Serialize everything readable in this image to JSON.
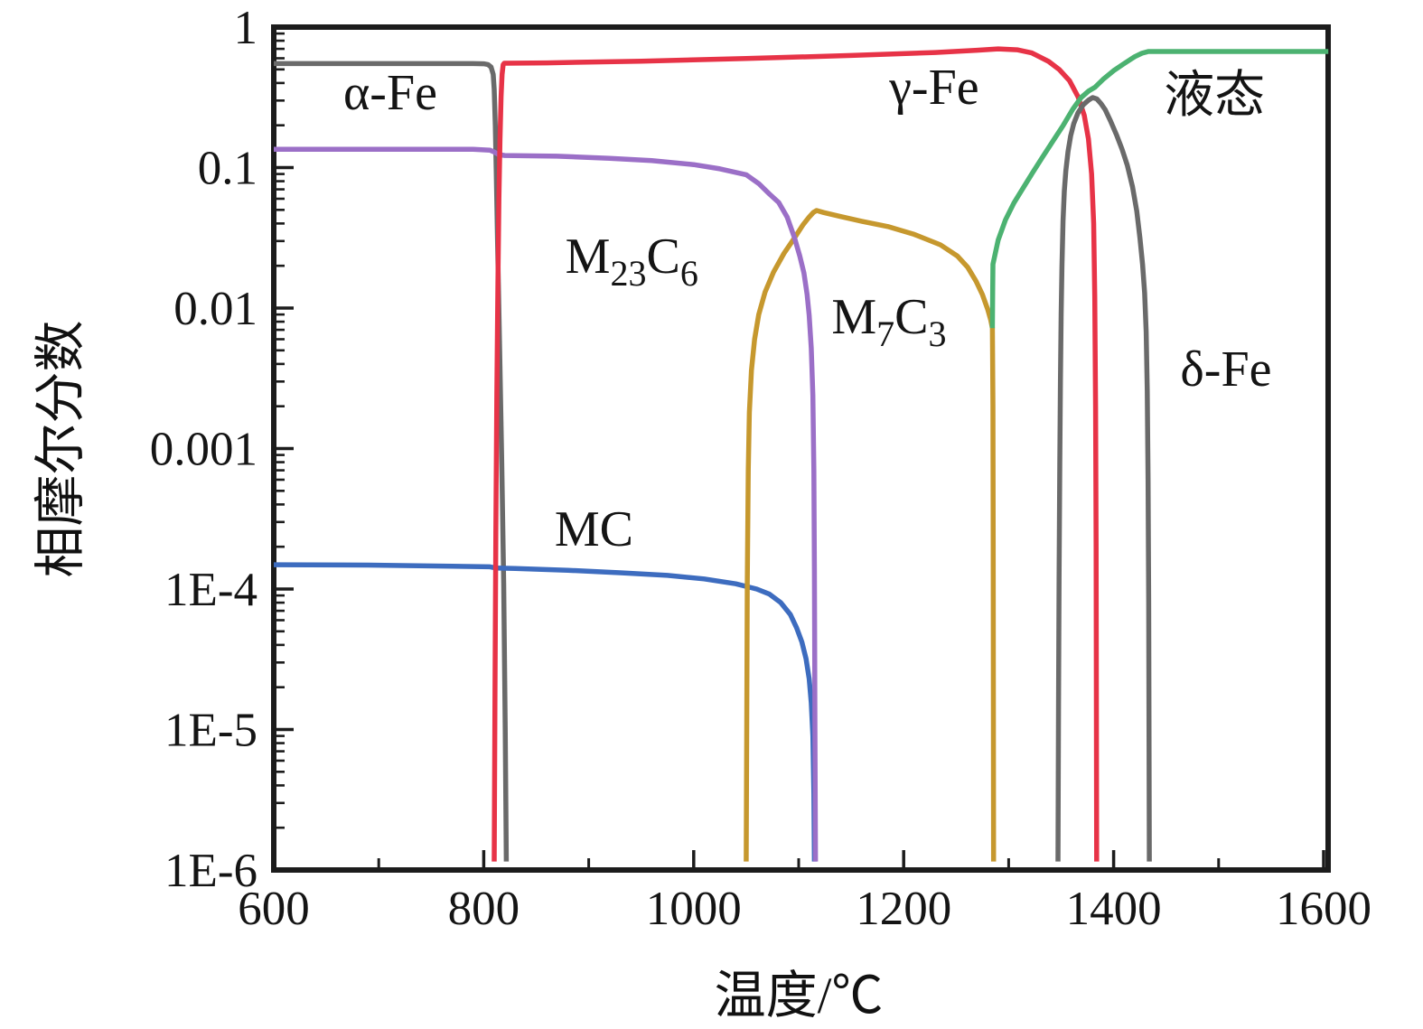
{
  "chart_data": {
    "type": "line",
    "title": "",
    "xlabel": "温度/℃",
    "ylabel": "相摩尔分数",
    "x_range": [
      600,
      1600
    ],
    "y_scale": "log",
    "y_range": [
      1e-06,
      1
    ],
    "grid": false,
    "legend": "none (curves labeled inline)",
    "axis_color": "#1c1c1c",
    "text_color": "#141414",
    "x_ticks_major": [
      600,
      800,
      1000,
      1200,
      1400,
      1600
    ],
    "x_tick_labels": [
      "600",
      "800",
      "1000",
      "1200",
      "1400",
      "1600"
    ],
    "x_ticks_minor": [
      700,
      900,
      1100,
      1300,
      1500
    ],
    "y_ticks": [
      {
        "value": 1,
        "label": "1"
      },
      {
        "value": 0.1,
        "label": "0.1"
      },
      {
        "value": 0.01,
        "label": "0.01"
      },
      {
        "value": 0.001,
        "label": "0.001"
      },
      {
        "value": 0.0001,
        "label": "1E-4"
      },
      {
        "value": 1e-05,
        "label": "1E-5"
      },
      {
        "value": 1e-06,
        "label": "1E-6"
      }
    ],
    "series": [
      {
        "id": "alpha-fe",
        "name": "α-Fe",
        "color": "#6a6a6a",
        "points": [
          [
            600,
            0.55
          ],
          [
            700,
            0.55
          ],
          [
            790,
            0.55
          ],
          [
            800,
            0.548
          ],
          [
            804,
            0.542
          ],
          [
            807,
            0.52
          ],
          [
            809,
            0.46
          ],
          [
            810,
            0.36
          ],
          [
            811,
            0.2
          ],
          [
            812,
            0.09
          ],
          [
            813,
            0.035
          ],
          [
            815,
            0.006
          ],
          [
            817,
            0.0009
          ],
          [
            819,
            0.00011
          ],
          [
            820.5,
            1e-05
          ],
          [
            821.5,
            1.15e-06
          ]
        ]
      },
      {
        "id": "mc",
        "name": "MC",
        "color": "#3d6cbf",
        "points": [
          [
            600,
            0.000149
          ],
          [
            690,
            0.000148
          ],
          [
            770,
            0.0001455
          ],
          [
            806,
            0.000144
          ],
          [
            812,
            0.000141
          ],
          [
            830,
            0.00014
          ],
          [
            880,
            0.000136
          ],
          [
            930,
            0.0001305
          ],
          [
            975,
            0.000125
          ],
          [
            1010,
            0.000118
          ],
          [
            1040,
            0.000109
          ],
          [
            1060,
            0.0001
          ],
          [
            1072,
            9.2e-05
          ],
          [
            1083,
            8e-05
          ],
          [
            1092,
            6.6e-05
          ],
          [
            1098,
            5.3e-05
          ],
          [
            1103,
            4.2e-05
          ],
          [
            1107,
            3.2e-05
          ],
          [
            1110,
            2.3e-05
          ],
          [
            1112,
            1.55e-05
          ],
          [
            1113.5,
            9e-06
          ],
          [
            1114.5,
            3.5e-06
          ],
          [
            1115,
            1.15e-06
          ]
        ]
      },
      {
        "id": "m7c3",
        "name": "M7C3",
        "color": "#c6982e",
        "points": [
          [
            1050,
            1.15e-06
          ],
          [
            1050.5,
            1e-05
          ],
          [
            1051,
            0.00011
          ],
          [
            1052,
            0.0007
          ],
          [
            1053,
            0.0018
          ],
          [
            1055,
            0.0036
          ],
          [
            1058,
            0.006
          ],
          [
            1062,
            0.009
          ],
          [
            1068,
            0.013
          ],
          [
            1076,
            0.018
          ],
          [
            1086,
            0.0245
          ],
          [
            1096,
            0.0316
          ],
          [
            1104,
            0.039
          ],
          [
            1110,
            0.0445
          ],
          [
            1114,
            0.048
          ],
          [
            1117,
            0.0495
          ],
          [
            1124,
            0.0478
          ],
          [
            1140,
            0.0448
          ],
          [
            1160,
            0.0415
          ],
          [
            1185,
            0.038
          ],
          [
            1210,
            0.0335
          ],
          [
            1235,
            0.0282
          ],
          [
            1251,
            0.0235
          ],
          [
            1261,
            0.0195
          ],
          [
            1269,
            0.0155
          ],
          [
            1275,
            0.0125
          ],
          [
            1280,
            0.0098
          ],
          [
            1283,
            0.0082
          ],
          [
            1284.5,
            0.0072
          ],
          [
            1285,
            0.002
          ],
          [
            1285.3,
            0.0002
          ],
          [
            1285.6,
            1.15e-06
          ]
        ]
      },
      {
        "id": "m23c6",
        "name": "M23C6",
        "color": "#9b6fc7",
        "points": [
          [
            600,
            0.135
          ],
          [
            700,
            0.135
          ],
          [
            790,
            0.135
          ],
          [
            806,
            0.133
          ],
          [
            810,
            0.129
          ],
          [
            814,
            0.124
          ],
          [
            820,
            0.122
          ],
          [
            870,
            0.1205
          ],
          [
            920,
            0.1165
          ],
          [
            960,
            0.112
          ],
          [
            1000,
            0.105
          ],
          [
            1025,
            0.098
          ],
          [
            1050,
            0.089
          ],
          [
            1062,
            0.077
          ],
          [
            1072,
            0.065
          ],
          [
            1081,
            0.0565
          ],
          [
            1089,
            0.0445
          ],
          [
            1096,
            0.0316
          ],
          [
            1101,
            0.0235
          ],
          [
            1105,
            0.0178
          ],
          [
            1108,
            0.0125
          ],
          [
            1110,
            0.0089
          ],
          [
            1112,
            0.0052
          ],
          [
            1113.5,
            0.0024
          ],
          [
            1114.5,
            0.0007
          ],
          [
            1115,
            0.00014
          ],
          [
            1115.5,
            1e-05
          ],
          [
            1116,
            1.15e-06
          ]
        ]
      },
      {
        "id": "gamma-fe",
        "name": "γ-Fe",
        "color": "#e73347",
        "points": [
          [
            810,
            1.15e-06
          ],
          [
            810.8,
            2e-05
          ],
          [
            811.5,
            0.00025
          ],
          [
            812.5,
            0.0025
          ],
          [
            813.5,
            0.015
          ],
          [
            814.5,
            0.06
          ],
          [
            815.5,
            0.16
          ],
          [
            816.5,
            0.32
          ],
          [
            817.5,
            0.46
          ],
          [
            818.5,
            0.54
          ],
          [
            819.5,
            0.553
          ],
          [
            860,
            0.556
          ],
          [
            950,
            0.572
          ],
          [
            1050,
            0.597
          ],
          [
            1150,
            0.628
          ],
          [
            1230,
            0.66
          ],
          [
            1270,
            0.685
          ],
          [
            1290,
            0.7
          ],
          [
            1308,
            0.69
          ],
          [
            1322,
            0.655
          ],
          [
            1338,
            0.57
          ],
          [
            1348,
            0.5
          ],
          [
            1358,
            0.415
          ],
          [
            1366,
            0.32
          ],
          [
            1372,
            0.235
          ],
          [
            1376,
            0.16
          ],
          [
            1379,
            0.09
          ],
          [
            1381,
            0.04
          ],
          [
            1382,
            0.012
          ],
          [
            1382.8,
            0.002
          ],
          [
            1383.3,
            0.0002
          ],
          [
            1383.8,
            1.15e-06
          ]
        ]
      },
      {
        "id": "delta-fe",
        "name": "δ-Fe",
        "color": "#6a6a6a",
        "points": [
          [
            1347,
            1.15e-06
          ],
          [
            1347.5,
            1.5e-05
          ],
          [
            1348,
            0.00012
          ],
          [
            1348.7,
            0.0008
          ],
          [
            1349.3,
            0.003
          ],
          [
            1350,
            0.009
          ],
          [
            1350.8,
            0.02
          ],
          [
            1351.8,
            0.042
          ],
          [
            1353,
            0.068
          ],
          [
            1354.5,
            0.095
          ],
          [
            1356.5,
            0.13
          ],
          [
            1359,
            0.168
          ],
          [
            1362,
            0.205
          ],
          [
            1366,
            0.245
          ],
          [
            1371,
            0.28
          ],
          [
            1376,
            0.302
          ],
          [
            1380,
            0.315
          ],
          [
            1384,
            0.308
          ],
          [
            1388,
            0.285
          ],
          [
            1392,
            0.258
          ],
          [
            1397,
            0.215
          ],
          [
            1403,
            0.169
          ],
          [
            1408,
            0.135
          ],
          [
            1413,
            0.104
          ],
          [
            1418,
            0.073
          ],
          [
            1422,
            0.049
          ],
          [
            1425,
            0.0315
          ],
          [
            1427.5,
            0.0205
          ],
          [
            1429.5,
            0.0128
          ],
          [
            1431,
            0.0068
          ],
          [
            1432,
            0.0026
          ],
          [
            1432.8,
            0.0006
          ],
          [
            1433.4,
            8e-05
          ],
          [
            1434,
            1.15e-06
          ]
        ]
      },
      {
        "id": "liquid",
        "name": "液态",
        "color": "#4cb271",
        "points": [
          [
            1284.5,
            0.0072
          ],
          [
            1284.8,
            0.013
          ],
          [
            1285,
            0.0205
          ],
          [
            1290,
            0.0305
          ],
          [
            1297,
            0.0425
          ],
          [
            1305,
            0.056
          ],
          [
            1313,
            0.07
          ],
          [
            1322,
            0.09
          ],
          [
            1332,
            0.118
          ],
          [
            1343,
            0.158
          ],
          [
            1352,
            0.2
          ],
          [
            1361,
            0.26
          ],
          [
            1369,
            0.315
          ],
          [
            1376,
            0.35
          ],
          [
            1382,
            0.372
          ],
          [
            1390,
            0.425
          ],
          [
            1400,
            0.49
          ],
          [
            1410,
            0.55
          ],
          [
            1420,
            0.615
          ],
          [
            1427,
            0.652
          ],
          [
            1433,
            0.67
          ],
          [
            1520,
            0.67
          ],
          [
            1604.5,
            0.67
          ]
        ]
      }
    ],
    "phase_labels": [
      {
        "id": "alpha-fe",
        "t": 711,
        "v": 0.345,
        "parts": [
          {
            "t": "α-Fe"
          }
        ]
      },
      {
        "id": "gamma-fe",
        "t": 1229,
        "v": 0.375,
        "parts": [
          {
            "t": "γ-Fe"
          }
        ]
      },
      {
        "id": "liquid",
        "t": 1496,
        "v": 0.33,
        "parts": [
          {
            "t": "液态"
          }
        ]
      },
      {
        "id": "m23c6",
        "t": 941,
        "v": 0.0236,
        "parts": [
          {
            "t": "M"
          },
          {
            "t": "23",
            "sub": true
          },
          {
            "t": "C"
          },
          {
            "t": "6",
            "sub": true
          }
        ]
      },
      {
        "id": "m7c3",
        "t": 1186,
        "v": 0.00875,
        "parts": [
          {
            "t": "M"
          },
          {
            "t": "7",
            "sub": true
          },
          {
            "t": "C"
          },
          {
            "t": "3",
            "sub": true
          }
        ]
      },
      {
        "id": "mc",
        "t": 905,
        "v": 0.00027,
        "parts": [
          {
            "t": "MC"
          }
        ]
      },
      {
        "id": "delta-fe",
        "t": 1507,
        "v": 0.0037,
        "parts": [
          {
            "t": "δ-Fe"
          }
        ]
      }
    ]
  }
}
